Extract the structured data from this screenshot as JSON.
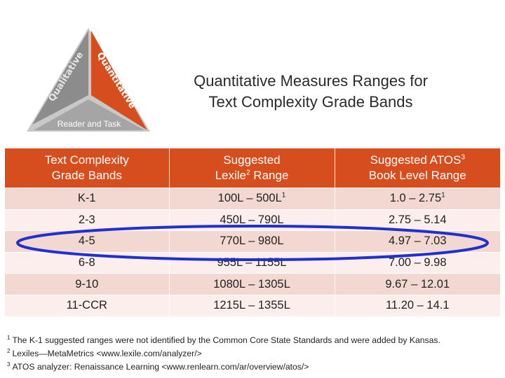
{
  "triangle": {
    "qualitative_label": "Qualitative",
    "quantitative_label": "Quantitative",
    "reader_task_label": "Reader and Task",
    "colors": {
      "orange": "#d64e1e",
      "gray": "#8c8c8c",
      "light_gray": "#c8c8c8"
    }
  },
  "title": {
    "line1": "Quantitative Measures Ranges for",
    "line2": "Text Complexity Grade Bands"
  },
  "table": {
    "headers": [
      {
        "line1": "Text Complexity",
        "line2": "Grade Bands",
        "sup": ""
      },
      {
        "line1": "Suggested",
        "line2": "Lexile",
        "sup": "2",
        "line2_after": " Range"
      },
      {
        "line1": "Suggested ATOS",
        "sup1": "3",
        "line2": "Book Level Range"
      }
    ],
    "rows": [
      {
        "band": "K-1",
        "lexile": "100L – 500L",
        "lexile_sup": "1",
        "atos": "1.0 – 2.75",
        "atos_sup": "1"
      },
      {
        "band": "2-3",
        "lexile": "450L – 790L",
        "lexile_sup": "",
        "atos": "2.75 – 5.14",
        "atos_sup": ""
      },
      {
        "band": "4-5",
        "lexile": "770L – 980L",
        "lexile_sup": "",
        "atos": "4.97 – 7.03",
        "atos_sup": ""
      },
      {
        "band": "6-8",
        "lexile": "955L – 1155L",
        "lexile_sup": "",
        "atos": "7.00 – 9.98",
        "atos_sup": ""
      },
      {
        "band": "9-10",
        "lexile": "1080L – 1305L",
        "lexile_sup": "",
        "atos": "9.67 – 12.01",
        "atos_sup": ""
      },
      {
        "band": "11-CCR",
        "lexile": "1215L – 1355L",
        "lexile_sup": "",
        "atos": "11.20 – 14.1",
        "atos_sup": ""
      }
    ],
    "colors": {
      "header": "#d64e1e",
      "row_dark": "#f3d8d2",
      "row_light": "#fbeeec"
    }
  },
  "highlight": {
    "color": "#1f2fd0",
    "highlighted_band": "4-5"
  },
  "footnotes": [
    {
      "num": "1",
      "text": "The K-1 suggested ranges were not identified by the Common Core State Standards and were added by Kansas."
    },
    {
      "num": "2",
      "text": "Lexiles—MetaMetrics <www.lexile.com/analyzer/>"
    },
    {
      "num": "3",
      "text": "ATOS analyzer: Renaissance Learning <www.renlearn.com/ar/overview/atos/>"
    }
  ]
}
